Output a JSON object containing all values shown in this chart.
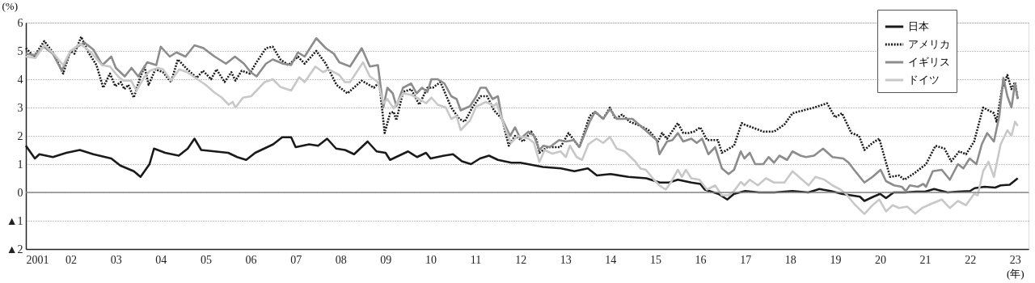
{
  "chart_data": {
    "type": "line",
    "ylabel": "(%)",
    "xlabel": "(年)",
    "xlim": [
      2001,
      2023.3
    ],
    "xticks": [
      {
        "value": 2001,
        "label": "2001"
      },
      {
        "value": 2002,
        "label": "02"
      },
      {
        "value": 2003,
        "label": "03"
      },
      {
        "value": 2004,
        "label": "04"
      },
      {
        "value": 2005,
        "label": "05"
      },
      {
        "value": 2006,
        "label": "06"
      },
      {
        "value": 2007,
        "label": "07"
      },
      {
        "value": 2008,
        "label": "08"
      },
      {
        "value": 2009,
        "label": "09"
      },
      {
        "value": 2010,
        "label": "10"
      },
      {
        "value": 2011,
        "label": "11"
      },
      {
        "value": 2012,
        "label": "12"
      },
      {
        "value": 2013,
        "label": "13"
      },
      {
        "value": 2014,
        "label": "14"
      },
      {
        "value": 2015,
        "label": "15"
      },
      {
        "value": 2016,
        "label": "16"
      },
      {
        "value": 2017,
        "label": "17"
      },
      {
        "value": 2018,
        "label": "18"
      },
      {
        "value": 2019,
        "label": "19"
      },
      {
        "value": 2020,
        "label": "20"
      },
      {
        "value": 2021,
        "label": "21"
      },
      {
        "value": 2022,
        "label": "22"
      },
      {
        "value": 2023,
        "label": "23"
      }
    ],
    "ylim": [
      -2,
      6
    ],
    "yticks": [
      {
        "value": -2,
        "label": "▲2"
      },
      {
        "value": -1,
        "label": "▲1"
      },
      0,
      1,
      2,
      3,
      4,
      5,
      6
    ],
    "grid": "y",
    "legend": "top right",
    "marker": "none",
    "ref_lines": [
      {
        "axis": "y",
        "value": 0,
        "color": "#888888",
        "line_style": "solid"
      }
    ],
    "series": [
      {
        "name": "日本",
        "color": "#1a1a1a",
        "line_style": "solid",
        "x": [
          2001.0,
          2001.2,
          2001.3,
          2001.6,
          2001.9,
          2002.2,
          2002.5,
          2002.9,
          2003.1,
          2003.4,
          2003.55,
          2003.75,
          2003.85,
          2004.1,
          2004.4,
          2004.6,
          2004.75,
          2004.9,
          2005.2,
          2005.5,
          2005.7,
          2005.9,
          2006.1,
          2006.3,
          2006.5,
          2006.7,
          2006.9,
          2007.0,
          2007.3,
          2007.5,
          2007.7,
          2007.9,
          2008.1,
          2008.3,
          2008.6,
          2008.8,
          2009.0,
          2009.1,
          2009.3,
          2009.5,
          2009.7,
          2009.9,
          2010.0,
          2010.3,
          2010.5,
          2010.7,
          2010.9,
          2011.1,
          2011.3,
          2011.5,
          2011.8,
          2012.0,
          2012.5,
          2012.9,
          2013.2,
          2013.5,
          2013.7,
          2014.0,
          2014.4,
          2014.8,
          2015.1,
          2015.3,
          2015.5,
          2015.8,
          2016.0,
          2016.1,
          2016.4,
          2016.6,
          2016.75,
          2017.0,
          2017.3,
          2017.65,
          2018.05,
          2018.4,
          2018.65,
          2018.9,
          2019.15,
          2019.35,
          2019.55,
          2019.65,
          2019.85,
          2020.0,
          2020.13,
          2020.3,
          2020.55,
          2020.8,
          2021.0,
          2021.2,
          2021.5,
          2021.73,
          2022.0,
          2022.1,
          2022.32,
          2022.56,
          2022.68,
          2022.88,
          2023.06
        ],
        "values": [
          1.65,
          1.2,
          1.35,
          1.25,
          1.4,
          1.5,
          1.35,
          1.2,
          0.95,
          0.75,
          0.55,
          1.0,
          1.55,
          1.4,
          1.3,
          1.55,
          1.9,
          1.5,
          1.45,
          1.4,
          1.25,
          1.15,
          1.4,
          1.55,
          1.7,
          1.95,
          1.95,
          1.6,
          1.7,
          1.65,
          1.9,
          1.55,
          1.5,
          1.35,
          1.8,
          1.45,
          1.4,
          1.15,
          1.3,
          1.45,
          1.25,
          1.4,
          1.2,
          1.3,
          1.35,
          1.1,
          1.0,
          1.2,
          1.3,
          1.15,
          1.05,
          1.05,
          0.9,
          0.85,
          0.75,
          0.85,
          0.6,
          0.65,
          0.55,
          0.5,
          0.35,
          0.35,
          0.45,
          0.35,
          0.3,
          0.1,
          -0.05,
          -0.25,
          -0.05,
          0.05,
          0.0,
          0.0,
          0.05,
          0.0,
          0.12,
          0.05,
          -0.05,
          -0.1,
          -0.15,
          -0.3,
          -0.15,
          -0.05,
          -0.2,
          0.0,
          0.0,
          0.03,
          0.03,
          0.12,
          0.0,
          0.03,
          0.05,
          0.15,
          0.2,
          0.17,
          0.25,
          0.27,
          0.5
        ]
      },
      {
        "name": "アメリカ",
        "color": "#1a1a1a",
        "line_style": "dotted",
        "x": [
          2001.0,
          2001.18,
          2001.41,
          2001.62,
          2001.83,
          2001.99,
          2002.08,
          2002.23,
          2002.39,
          2002.57,
          2002.72,
          2002.87,
          2002.99,
          2003.11,
          2003.19,
          2003.28,
          2003.4,
          2003.55,
          2003.64,
          2003.73,
          2003.88,
          2004.05,
          2004.23,
          2004.38,
          2004.59,
          2004.8,
          2004.94,
          2005.12,
          2005.24,
          2005.42,
          2005.57,
          2005.66,
          2005.8,
          2005.98,
          2006.13,
          2006.34,
          2006.49,
          2006.66,
          2006.84,
          2007.05,
          2007.2,
          2007.46,
          2007.67,
          2007.91,
          2008.15,
          2008.47,
          2008.74,
          2008.86,
          2008.98,
          2009.1,
          2009.18,
          2009.24,
          2009.39,
          2009.57,
          2009.75,
          2009.93,
          2010.05,
          2010.22,
          2010.46,
          2010.64,
          2010.76,
          2010.93,
          2011.11,
          2011.26,
          2011.41,
          2011.59,
          2011.74,
          2011.88,
          2012.06,
          2012.24,
          2012.36,
          2012.42,
          2012.6,
          2012.89,
          2013.07,
          2013.31,
          2013.54,
          2013.66,
          2013.84,
          2013.99,
          2014.11,
          2014.26,
          2014.43,
          2014.67,
          2014.85,
          2015.06,
          2015.15,
          2015.26,
          2015.5,
          2015.62,
          2015.74,
          2015.86,
          2016.0,
          2016.15,
          2016.39,
          2016.48,
          2016.75,
          2016.92,
          2016.98,
          2017.4,
          2017.64,
          2017.87,
          2018.05,
          2018.29,
          2018.53,
          2018.82,
          2019.0,
          2019.15,
          2019.36,
          2019.53,
          2019.65,
          2019.83,
          2019.98,
          2020.22,
          2020.42,
          2020.54,
          2020.78,
          2021.02,
          2021.23,
          2021.43,
          2021.58,
          2021.76,
          2021.91,
          2022.09,
          2022.29,
          2022.53,
          2022.59,
          2022.71,
          2022.83,
          2022.92,
          2023.0,
          2023.06
        ],
        "values": [
          5.1,
          4.8,
          5.35,
          4.9,
          4.2,
          5.0,
          4.9,
          5.5,
          4.95,
          4.5,
          3.7,
          4.2,
          3.75,
          3.9,
          3.65,
          3.8,
          3.35,
          4.1,
          4.45,
          3.8,
          4.35,
          4.25,
          3.9,
          4.7,
          4.35,
          4.05,
          4.3,
          4.0,
          4.35,
          3.9,
          4.25,
          3.95,
          4.3,
          4.2,
          4.6,
          5.1,
          5.15,
          4.7,
          4.5,
          4.8,
          4.55,
          5.0,
          4.55,
          3.8,
          3.5,
          3.95,
          3.7,
          3.9,
          2.1,
          2.8,
          2.85,
          2.55,
          3.55,
          3.65,
          3.1,
          3.7,
          3.7,
          3.9,
          3.0,
          2.6,
          2.5,
          3.0,
          3.4,
          3.4,
          2.9,
          2.6,
          1.65,
          2.0,
          1.8,
          2.15,
          1.85,
          1.4,
          1.6,
          1.6,
          2.1,
          1.6,
          2.7,
          2.85,
          2.6,
          3.0,
          2.6,
          2.75,
          2.5,
          2.35,
          2.2,
          1.8,
          2.1,
          1.9,
          2.45,
          2.1,
          2.1,
          2.15,
          2.3,
          1.85,
          1.85,
          1.4,
          1.65,
          2.45,
          2.4,
          2.15,
          2.15,
          2.4,
          2.8,
          2.9,
          3.0,
          3.15,
          2.65,
          2.8,
          2.1,
          2.0,
          1.5,
          1.75,
          1.9,
          0.55,
          0.6,
          0.45,
          0.7,
          1.0,
          1.65,
          1.55,
          1.1,
          1.45,
          1.35,
          1.8,
          3.0,
          2.8,
          2.5,
          3.65,
          4.15,
          3.65,
          3.9,
          3.3
        ]
      },
      {
        "name": "イギリス",
        "color": "#8c8c8c",
        "line_style": "solid",
        "x": [
          2001.0,
          2001.2,
          2001.4,
          2001.6,
          2001.8,
          2002.0,
          2002.3,
          2002.5,
          2002.7,
          2002.9,
          2003.0,
          2003.2,
          2003.35,
          2003.5,
          2003.7,
          2003.9,
          2004.0,
          2004.2,
          2004.35,
          2004.55,
          2004.75,
          2004.95,
          2005.2,
          2005.45,
          2005.65,
          2005.85,
          2006.0,
          2006.13,
          2006.34,
          2006.49,
          2006.72,
          2006.9,
          2007.05,
          2007.2,
          2007.46,
          2007.67,
          2007.85,
          2007.97,
          2008.21,
          2008.47,
          2008.65,
          2008.83,
          2008.95,
          2009.04,
          2009.16,
          2009.24,
          2009.39,
          2009.57,
          2009.69,
          2009.81,
          2009.93,
          2010.02,
          2010.16,
          2010.31,
          2010.46,
          2010.58,
          2010.67,
          2010.88,
          2011.02,
          2011.11,
          2011.23,
          2011.38,
          2011.5,
          2011.59,
          2011.77,
          2011.88,
          2012.0,
          2012.18,
          2012.3,
          2012.42,
          2012.51,
          2012.65,
          2012.86,
          2013.01,
          2013.19,
          2013.31,
          2013.54,
          2013.66,
          2013.84,
          2013.99,
          2014.14,
          2014.49,
          2014.67,
          2014.85,
          2015.03,
          2015.09,
          2015.26,
          2015.38,
          2015.5,
          2015.62,
          2015.8,
          2015.92,
          2016.04,
          2016.18,
          2016.33,
          2016.48,
          2016.63,
          2016.75,
          2016.9,
          2016.98,
          2017.1,
          2017.22,
          2017.4,
          2017.52,
          2017.64,
          2017.76,
          2017.93,
          2018.05,
          2018.23,
          2018.35,
          2018.53,
          2018.73,
          2018.94,
          2019.18,
          2019.3,
          2019.42,
          2019.65,
          2019.83,
          2020.01,
          2020.13,
          2020.31,
          2020.48,
          2020.57,
          2020.66,
          2020.84,
          2020.96,
          2021.02,
          2021.17,
          2021.37,
          2021.55,
          2021.73,
          2021.85,
          2021.99,
          2022.14,
          2022.26,
          2022.38,
          2022.53,
          2022.65,
          2022.74,
          2022.83,
          2022.92,
          2023.0,
          2023.06
        ],
        "values": [
          4.9,
          4.85,
          5.15,
          4.9,
          4.3,
          5.0,
          5.3,
          5.05,
          4.5,
          4.8,
          4.4,
          4.1,
          4.4,
          4.1,
          4.6,
          4.5,
          5.15,
          4.8,
          4.95,
          4.8,
          5.2,
          5.1,
          4.8,
          4.55,
          4.8,
          4.55,
          4.25,
          4.1,
          4.55,
          4.7,
          4.55,
          4.5,
          4.95,
          4.8,
          5.45,
          5.1,
          4.9,
          4.6,
          4.45,
          5.1,
          4.45,
          4.5,
          3.0,
          3.7,
          3.5,
          3.05,
          3.7,
          3.85,
          3.5,
          3.7,
          3.55,
          4.0,
          4.0,
          3.85,
          3.4,
          3.3,
          2.9,
          3.05,
          3.4,
          3.7,
          3.7,
          3.3,
          3.4,
          2.6,
          2.0,
          2.3,
          1.9,
          2.15,
          2.0,
          1.5,
          1.65,
          1.6,
          1.85,
          1.8,
          1.85,
          1.6,
          2.5,
          2.85,
          2.6,
          2.95,
          2.6,
          2.6,
          2.35,
          2.1,
          1.85,
          1.35,
          1.8,
          1.85,
          2.1,
          1.8,
          1.9,
          1.75,
          1.9,
          1.35,
          1.6,
          0.85,
          0.65,
          0.8,
          1.45,
          1.2,
          1.4,
          1.0,
          1.0,
          1.25,
          1.05,
          1.3,
          1.15,
          1.45,
          1.3,
          1.25,
          1.3,
          1.55,
          1.25,
          1.2,
          1.05,
          0.8,
          0.35,
          0.55,
          0.8,
          0.4,
          0.25,
          0.2,
          0.05,
          0.25,
          0.2,
          0.3,
          0.2,
          0.75,
          0.8,
          0.45,
          1.0,
          0.85,
          1.2,
          1.0,
          1.7,
          2.1,
          1.8,
          2.7,
          4.05,
          3.4,
          3.0,
          3.85,
          3.3
        ]
      },
      {
        "name": "ドイツ",
        "color": "#c8c8c8",
        "line_style": "solid",
        "x": [
          2001.0,
          2001.21,
          2001.41,
          2001.62,
          2001.83,
          2001.99,
          2002.21,
          2002.45,
          2002.69,
          2002.87,
          2003.05,
          2003.17,
          2003.34,
          2003.46,
          2003.64,
          2003.76,
          2003.94,
          2004.05,
          2004.23,
          2004.41,
          2004.59,
          2004.77,
          2005.0,
          2005.18,
          2005.36,
          2005.51,
          2005.6,
          2005.66,
          2005.83,
          2006.01,
          2006.13,
          2006.31,
          2006.49,
          2006.66,
          2006.9,
          2007.08,
          2007.2,
          2007.44,
          2007.61,
          2007.73,
          2007.97,
          2008.09,
          2008.21,
          2008.5,
          2008.65,
          2008.83,
          2008.95,
          2009.04,
          2009.18,
          2009.39,
          2009.57,
          2009.75,
          2009.9,
          2010.02,
          2010.16,
          2010.34,
          2010.46,
          2010.58,
          2010.67,
          2010.88,
          2011.02,
          2011.11,
          2011.23,
          2011.41,
          2011.47,
          2011.65,
          2011.79,
          2011.94,
          2012.18,
          2012.3,
          2012.42,
          2012.54,
          2012.71,
          2012.89,
          2013.01,
          2013.1,
          2013.25,
          2013.37,
          2013.51,
          2013.69,
          2013.84,
          2013.99,
          2014.14,
          2014.32,
          2014.55,
          2014.67,
          2014.79,
          2014.97,
          2015.09,
          2015.23,
          2015.35,
          2015.5,
          2015.59,
          2015.68,
          2015.8,
          2015.98,
          2016.15,
          2016.33,
          2016.48,
          2016.63,
          2016.75,
          2016.9,
          2016.98,
          2017.1,
          2017.28,
          2017.46,
          2017.64,
          2017.87,
          2018.05,
          2018.23,
          2018.41,
          2018.56,
          2018.76,
          2018.94,
          2019.12,
          2019.24,
          2019.42,
          2019.65,
          2019.83,
          2019.98,
          2020.13,
          2020.28,
          2020.42,
          2020.6,
          2020.78,
          2020.93,
          2021.14,
          2021.37,
          2021.55,
          2021.73,
          2021.91,
          2022.09,
          2022.17,
          2022.29,
          2022.41,
          2022.53,
          2022.68,
          2022.83,
          2022.92,
          2023.0,
          2023.06
        ],
        "values": [
          4.8,
          4.75,
          5.2,
          4.9,
          4.5,
          5.0,
          5.25,
          4.95,
          4.5,
          4.45,
          4.1,
          3.95,
          3.95,
          3.6,
          4.1,
          4.3,
          4.4,
          4.35,
          3.95,
          4.35,
          4.25,
          4.05,
          3.8,
          3.55,
          3.35,
          3.1,
          3.2,
          3.0,
          3.35,
          3.4,
          3.6,
          3.9,
          4.0,
          3.73,
          3.6,
          4.07,
          3.9,
          4.45,
          4.25,
          4.35,
          4.15,
          3.9,
          3.9,
          4.6,
          4.1,
          3.9,
          3.15,
          3.3,
          2.97,
          3.5,
          3.45,
          3.3,
          3.15,
          3.35,
          3.1,
          3.0,
          2.6,
          2.7,
          2.2,
          2.55,
          3.05,
          3.1,
          3.2,
          3.05,
          3.15,
          2.3,
          1.75,
          2.0,
          1.9,
          1.75,
          1.08,
          1.5,
          1.37,
          1.45,
          1.25,
          1.65,
          1.25,
          1.15,
          1.7,
          1.9,
          1.75,
          1.96,
          1.55,
          1.45,
          1.1,
          0.84,
          0.8,
          0.45,
          0.25,
          0.1,
          0.37,
          0.8,
          0.55,
          0.8,
          0.5,
          0.45,
          0.1,
          0.25,
          -0.1,
          -0.1,
          0.05,
          0.37,
          0.25,
          0.45,
          0.25,
          0.5,
          0.35,
          0.35,
          0.75,
          0.5,
          0.25,
          0.55,
          0.45,
          0.25,
          0.1,
          -0.05,
          -0.4,
          -0.76,
          -0.45,
          -0.25,
          -0.67,
          -0.45,
          -0.55,
          -0.5,
          -0.75,
          -0.55,
          -0.4,
          -0.25,
          -0.55,
          -0.3,
          -0.45,
          -0.05,
          -0.1,
          0.75,
          1.08,
          0.55,
          1.7,
          2.2,
          2.0,
          2.5,
          2.35
        ]
      }
    ]
  }
}
